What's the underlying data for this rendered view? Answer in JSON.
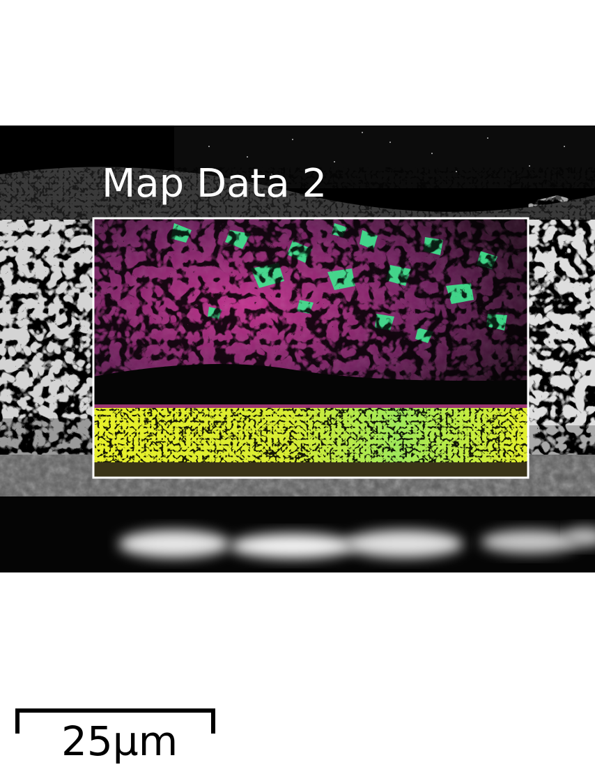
{
  "overlay": {
    "map_label": "Map Data 2"
  },
  "scale_bar": {
    "label": "25µm"
  },
  "colors": {
    "background": "#ffffff",
    "sem_background": "#000000",
    "map_box_outline": "#ffffff",
    "phase_magenta": "#d93aa5",
    "phase_green": "#3ee88f",
    "phase_yellow": "#e4ee2a",
    "scale_bar": "#000000"
  }
}
